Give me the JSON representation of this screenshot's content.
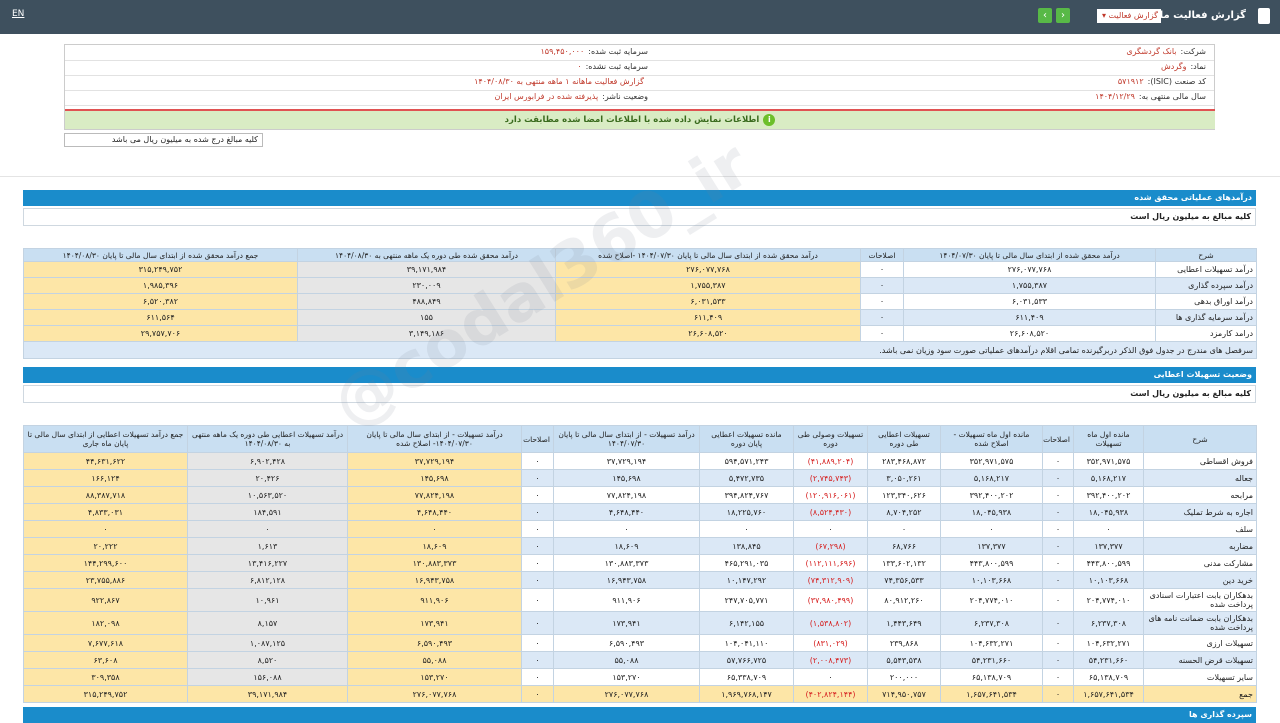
{
  "topbar": {
    "lang": "EN",
    "title": "گزارش فعالیت ماهانه",
    "dropdown": "گزارش فعالیت"
  },
  "info": {
    "right": [
      {
        "label": "شرکت:",
        "value": "بانک گردشگری"
      },
      {
        "label": "نماد:",
        "value": "وگردش"
      },
      {
        "label": "کد صنعت (ISIC):",
        "value": "۵۷۱۹۱۲"
      },
      {
        "label": "سال مالی منتهی به:",
        "value": "۱۴۰۴/۱۲/۲۹"
      }
    ],
    "left": [
      {
        "label": "سرمایه ثبت شده:",
        "value": "۱۵۹,۴۵۰,۰۰۰"
      },
      {
        "label": "سرمایه ثبت نشده:",
        "value": "۰"
      },
      {
        "text": "گزارش فعالیت ماهانه ۱ ماهه منتهی به ۱۴۰۴/۰۸/۳۰"
      },
      {
        "label": "وضعیت ناشر:",
        "value": "پذیرفته شده در فرابورس ایران"
      }
    ]
  },
  "banner": "اطلاعات نمایش داده شده با اطلاعات امضا شده مطابقت دارد",
  "unit_note": "کلیه مبالغ درج شده به میلیون ریال می باشد",
  "watermark": "@codal360_ir",
  "sections": [
    {
      "title": "درآمدهای عملیاتی محقق شده",
      "unit": "کلیه مبالغ به میلیون ریال است",
      "table": {
        "headers": [
          "شرح",
          "درآمد محقق شده از ابتدای سال مالی تا پایان ۱۴۰۴/۰۷/۳۰",
          "اصلاحات",
          "درآمد محقق شده از ابتدای سال مالی تا پایان ۱۴۰۴/۰۷/۳۰ -اصلاح شده",
          "درآمد محقق شده طی دوره یک ماهه منتهی به ۱۴۰۴/۰۸/۳۰",
          "جمع درآمد محقق شده از ابتدای سال مالی تا پایان ۱۴۰۴/۰۸/۳۰"
        ],
        "rows": [
          [
            "درآمد تسهیلات اعطایی",
            "۲۷۶,۰۷۷,۷۶۸",
            "۰",
            "۲۷۶,۰۷۷,۷۶۸",
            "۳۹,۱۷۱,۹۸۴",
            "۳۱۵,۲۴۹,۷۵۲"
          ],
          [
            "درآمد سپرده گذاری",
            "۱,۷۵۵,۳۸۷",
            "۰",
            "۱,۷۵۵,۳۸۷",
            "۲۳۰,۰۰۹",
            "۱,۹۸۵,۳۹۶"
          ],
          [
            "درآمد اوراق بدهی",
            "۶,۰۳۱,۵۳۳",
            "۰",
            "۶,۰۳۱,۵۳۳",
            "۴۸۸,۸۴۹",
            "۶,۵۲۰,۳۸۲"
          ],
          [
            "درآمد سرمایه گذاری ها",
            "۶۱۱,۴۰۹",
            "۰",
            "۶۱۱,۴۰۹",
            "۱۵۵",
            "۶۱۱,۵۶۴"
          ],
          [
            "درامد کارمزد",
            "۲۶,۶۰۸,۵۲۰",
            "۰",
            "۲۶,۶۰۸,۵۲۰",
            "۳,۱۴۹,۱۸۶",
            "۲۹,۷۵۷,۷۰۶"
          ]
        ],
        "footnote": "سرفصل های مندرج در جدول فوق الذکر دربرگیرنده تمامی اقلام درآمدهای عملیاتی صورت سود وزیان نمی باشد."
      }
    },
    {
      "title": "وضعیت تسهیلات اعطایی",
      "unit": "کلیه مبالغ به میلیون ریال است",
      "table": {
        "headers": [
          "شرح",
          "مانده اول ماه تسهیلات",
          "اصلاحات",
          "مانده اول ماه تسهیلات - اصلاح شده",
          "تسهیلات اعطایی طی دوره",
          "تسهیلات وصولی طی دوره",
          "مانده تسهیلات اعطایی پایان دوره",
          "درآمد تسهیلات - از ابتدای سال مالی تا پایان ۱۴۰۴/۰۷/۳۰",
          "اصلاحات",
          "درآمد تسهیلات - از ابتدای سال مالی تا پایان ۱۴۰۴/۰۷/۳۰- اصلاح شده",
          "درآمد تسهیلات اعطایی طی دوره یک ماهه منتهی به ۱۴۰۴/۰۸/۳۰",
          "جمع درآمد تسهیلات اعطایی از ابتدای سال مالی تا پایان ماه جاری"
        ],
        "rows": [
          [
            "فروش اقساطی",
            "۳۵۲,۹۷۱,۵۷۵",
            "۰",
            "۳۵۲,۹۷۱,۵۷۵",
            "۲۸۳,۴۶۸,۸۷۲",
            "(۴۱,۸۸۹,۲۰۴)",
            "۵۹۴,۵۷۱,۲۴۳",
            "۳۷,۷۲۹,۱۹۴",
            "۰",
            "۳۷,۷۲۹,۱۹۴",
            "۶,۹۰۲,۴۲۸",
            "۴۴,۶۳۱,۶۲۲"
          ],
          [
            "جعاله",
            "۵,۱۶۸,۲۱۷",
            "۰",
            "۵,۱۶۸,۲۱۷",
            "۳,۰۵۰,۲۶۱",
            "(۲,۷۴۵,۷۴۳)",
            "۵,۴۷۲,۷۳۵",
            "۱۴۵,۶۹۸",
            "۰",
            "۱۴۵,۶۹۸",
            "۲۰,۴۲۶",
            "۱۶۶,۱۲۴"
          ],
          [
            "مرابحه",
            "۳۹۲,۴۰۰,۲۰۲",
            "۰",
            "۳۹۲,۴۰۰,۲۰۲",
            "۱۲۳,۳۴۰,۶۲۶",
            "(۱۲۰,۹۱۶,۰۶۱)",
            "۳۹۴,۸۲۴,۷۶۷",
            "۷۷,۸۲۴,۱۹۸",
            "۰",
            "۷۷,۸۲۴,۱۹۸",
            "۱۰,۵۶۳,۵۲۰",
            "۸۸,۳۸۷,۷۱۸"
          ],
          [
            "اجاره به شرط تملیک",
            "۱۸,۰۴۵,۹۳۸",
            "۰",
            "۱۸,۰۴۵,۹۳۸",
            "۸,۷۰۴,۲۵۲",
            "(۸,۵۲۴,۴۳۰)",
            "۱۸,۲۲۵,۷۶۰",
            "۴,۶۴۸,۴۴۰",
            "۰",
            "۴,۶۴۸,۴۴۰",
            "۱۸۴,۵۹۱",
            "۴,۸۳۳,۰۳۱"
          ],
          [
            "سلف",
            "۰",
            "۰",
            "۰",
            "۰",
            "۰",
            "۰",
            "۰",
            "۰",
            "۰",
            "۰",
            "۰"
          ],
          [
            "مضاربه",
            "۱۳۷,۳۷۷",
            "۰",
            "۱۳۷,۳۷۷",
            "۶۸,۷۶۶",
            "(۶۷,۲۹۸)",
            "۱۳۸,۸۴۵",
            "۱۸,۶۰۹",
            "۰",
            "۱۸,۶۰۹",
            "۱,۶۱۳",
            "۲۰,۲۲۲"
          ],
          [
            "مشارکت مدنی",
            "۴۴۳,۸۰۰,۵۹۹",
            "۰",
            "۴۴۳,۸۰۰,۵۹۹",
            "۱۳۳,۶۰۲,۱۳۲",
            "(۱۱۲,۱۱۱,۶۹۶)",
            "۴۶۵,۲۹۱,۰۳۵",
            "۱۳۰,۸۸۳,۳۷۳",
            "۰",
            "۱۳۰,۸۸۳,۳۷۳",
            "۱۳,۴۱۶,۲۲۷",
            "۱۴۴,۲۹۹,۶۰۰"
          ],
          [
            "خرید دین",
            "۱۰,۱۰۳,۶۶۸",
            "۰",
            "۱۰,۱۰۳,۶۶۸",
            "۷۴,۳۵۶,۵۳۳",
            "(۷۴,۳۱۲,۹۰۹)",
            "۱۰,۱۴۷,۲۹۲",
            "۱۶,۹۴۳,۷۵۸",
            "۰",
            "۱۶,۹۴۳,۷۵۸",
            "۶,۸۱۲,۱۲۸",
            "۲۳,۷۵۵,۸۸۶"
          ],
          [
            "بدهکاران بابت اعتبارات اسنادی پرداخت شده",
            "۲۰۴,۷۷۴,۰۱۰",
            "۰",
            "۲۰۴,۷۷۴,۰۱۰",
            "۸۰,۹۱۲,۲۶۰",
            "(۳۷,۹۸۰,۴۹۹)",
            "۲۴۷,۷۰۵,۷۷۱",
            "۹۱۱,۹۰۶",
            "۰",
            "۹۱۱,۹۰۶",
            "۱۰,۹۶۱",
            "۹۲۲,۸۶۷"
          ],
          [
            "بدهکاران بابت ضمانت نامه های پرداخت شده",
            "۶,۲۳۷,۳۰۸",
            "۰",
            "۶,۲۳۷,۳۰۸",
            "۱,۴۴۳,۶۴۹",
            "(۱,۵۳۸,۸۰۲)",
            "۶,۱۴۲,۱۵۵",
            "۱۷۳,۹۴۱",
            "۰",
            "۱۷۳,۹۴۱",
            "۸,۱۵۷",
            "۱۸۲,۰۹۸"
          ],
          [
            "تسهیلات ارزی",
            "۱۰۴,۶۳۲,۲۷۱",
            "۰",
            "۱۰۴,۶۳۲,۲۷۱",
            "۲۳۹,۸۶۸",
            "(۸۳۱,۰۲۹)",
            "۱۰۴,۰۴۱,۱۱۰",
            "۶,۵۹۰,۴۹۳",
            "۰",
            "۶,۵۹۰,۴۹۳",
            "۱,۰۸۷,۱۲۵",
            "۷,۶۷۷,۶۱۸"
          ],
          [
            "تسهیلات قرض الحسنه",
            "۵۴,۲۳۱,۶۶۰",
            "۰",
            "۵۴,۲۳۱,۶۶۰",
            "۵,۵۴۳,۵۳۸",
            "(۲,۰۰۸,۴۷۳)",
            "۵۷,۷۶۶,۷۲۵",
            "۵۵,۰۸۸",
            "۰",
            "۵۵,۰۸۸",
            "۸,۵۲۰",
            "۶۳,۶۰۸"
          ],
          [
            "سایر تسهیلات",
            "۶۵,۱۳۸,۷۰۹",
            "۰",
            "۶۵,۱۳۸,۷۰۹",
            "۲۰۰,۰۰۰",
            "۰",
            "۶۵,۳۳۸,۷۰۹",
            "۱۵۳,۲۷۰",
            "۰",
            "۱۵۳,۲۷۰",
            "۱۵۶,۰۸۸",
            "۳۰۹,۳۵۸"
          ],
          [
            "جمع",
            "۱,۶۵۷,۶۴۱,۵۳۴",
            "۰",
            "۱,۶۵۷,۶۴۱,۵۳۴",
            "۷۱۴,۹۵۰,۷۵۷",
            "(۴۰۲,۸۲۴,۱۴۴)",
            "۱,۹۶۹,۷۶۸,۱۴۷",
            "۲۷۶,۰۷۷,۷۶۸",
            "۰",
            "۲۷۶,۰۷۷,۷۶۸",
            "۳۹,۱۷۱,۹۸۴",
            "۳۱۵,۲۴۹,۷۵۲"
          ]
        ]
      }
    },
    {
      "title": "سپرده گذاری ها"
    }
  ]
}
